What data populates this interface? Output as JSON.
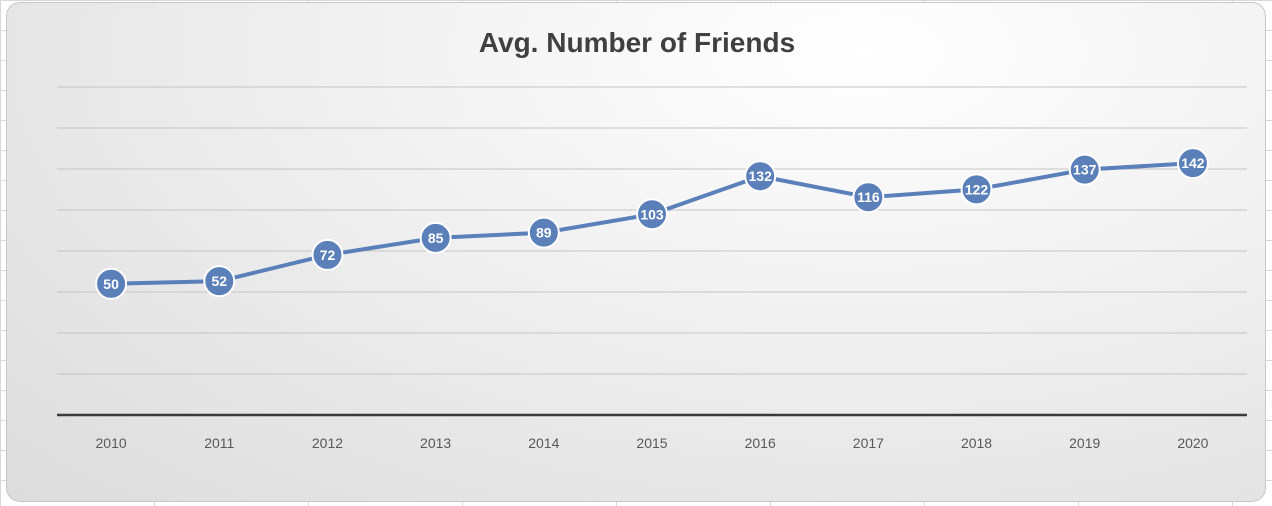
{
  "chart_data": {
    "type": "line",
    "title": "Avg. Number of Friends",
    "xlabel": "",
    "ylabel": "",
    "categories": [
      "2010",
      "2011",
      "2012",
      "2013",
      "2014",
      "2015",
      "2016",
      "2017",
      "2018",
      "2019",
      "2020"
    ],
    "values": [
      50,
      52,
      72,
      85,
      89,
      103,
      132,
      116,
      122,
      137,
      142
    ],
    "ylim": [
      -50,
      200
    ],
    "grid": true,
    "legend": "none",
    "colors": {
      "series": "#5b80b9",
      "marker_border": "#ffffff",
      "label": "#ffffff"
    }
  }
}
